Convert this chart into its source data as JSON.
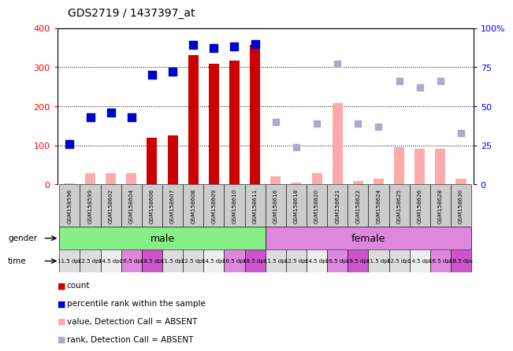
{
  "title": "GDS2719 / 1437397_at",
  "samples": [
    "GSM158596",
    "GSM158599",
    "GSM158602",
    "GSM158604",
    "GSM158606",
    "GSM158607",
    "GSM158608",
    "GSM158609",
    "GSM158610",
    "GSM158611",
    "GSM158616",
    "GSM158618",
    "GSM158620",
    "GSM158621",
    "GSM158622",
    "GSM158624",
    "GSM158625",
    "GSM158626",
    "GSM158628",
    "GSM158630"
  ],
  "count_values": [
    null,
    null,
    null,
    null,
    120,
    125,
    330,
    308,
    316,
    357,
    null,
    null,
    null,
    null,
    null,
    null,
    null,
    null,
    null,
    null
  ],
  "percentile_values": [
    26,
    43,
    46,
    43,
    70,
    72,
    89,
    87,
    88,
    90,
    null,
    null,
    null,
    null,
    null,
    null,
    null,
    null,
    null,
    null
  ],
  "absent_value": [
    3,
    28,
    28,
    28,
    null,
    null,
    null,
    null,
    null,
    null,
    20,
    5,
    28,
    208,
    8,
    15,
    95,
    92,
    92,
    15
  ],
  "absent_rank": [
    null,
    null,
    null,
    null,
    null,
    null,
    null,
    null,
    null,
    null,
    40,
    24,
    39,
    77,
    39,
    37,
    66,
    62,
    66,
    33
  ],
  "gender_groups": [
    {
      "label": "male",
      "start": 0,
      "end": 9
    },
    {
      "label": "female",
      "start": 10,
      "end": 19
    }
  ],
  "time_per_sample": [
    "11.5 dpc",
    "12.5 dpc",
    "14.5 dpc",
    "16.5 dpc",
    "18.5 dpc",
    "11.5 dpc",
    "12.5 dpc",
    "14.5 dpc",
    "16.5 dpc",
    "18.5 dpc",
    "11.5 dpc",
    "12.5 dpc",
    "14.5 dpc",
    "16.5 dpc",
    "18.5 dpc",
    "11.5 dpc",
    "12.5 dpc",
    "14.5 dpc",
    "16.5 dpc",
    "18.5 dpc"
  ],
  "ylim": [
    0,
    400
  ],
  "right_ylim": [
    0,
    100
  ],
  "yticks_left": [
    0,
    100,
    200,
    300,
    400
  ],
  "yticks_right": [
    0,
    25,
    50,
    75,
    100
  ],
  "count_color": "#cc0000",
  "percentile_color": "#0000cc",
  "absent_value_color": "#ffaaaa",
  "absent_rank_color": "#aaaacc",
  "male_color": "#88ee88",
  "female_color": "#dd88dd",
  "sample_box_color": "#cccccc",
  "time_point_colors": {
    "11.5 dpc": "#dddddd",
    "12.5 dpc": "#dddddd",
    "14.5 dpc": "#eeeeee",
    "16.5 dpc": "#dd88dd",
    "18.5 dpc": "#cc55cc"
  }
}
